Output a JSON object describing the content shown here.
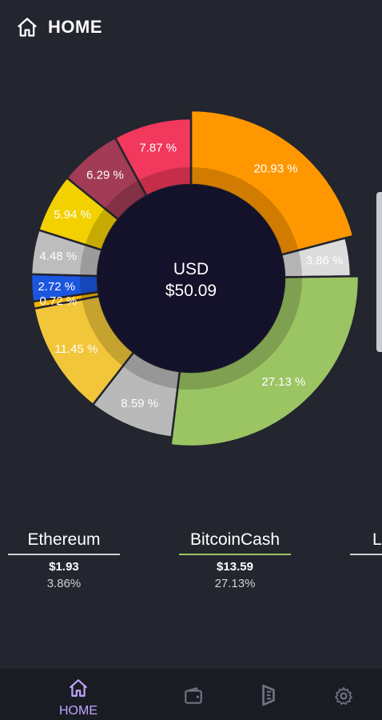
{
  "header": {
    "title": "HOME",
    "icon": "home-icon"
  },
  "chart_data": {
    "type": "pie",
    "center_label": "USD",
    "center_value": "$50.09",
    "slices": [
      {
        "label": "20.93 %",
        "value": 20.93,
        "color": "#ff9800"
      },
      {
        "label": "3.86 %",
        "value": 3.86,
        "color": "#dcdcdc"
      },
      {
        "label": "27.13 %",
        "value": 27.13,
        "color": "#9bc463"
      },
      {
        "label": "8.59 %",
        "value": 8.59,
        "color": "#b9b9b9"
      },
      {
        "label": "11.45 %",
        "value": 11.45,
        "color": "#f2c63a"
      },
      {
        "label": "0.72 %",
        "value": 0.72,
        "color": "#f5b400"
      },
      {
        "label": "2.72 %",
        "value": 2.72,
        "color": "#1b56e0"
      },
      {
        "label": "4.48 %",
        "value": 4.48,
        "color": "#bdbdbd"
      },
      {
        "label": "5.94 %",
        "value": 5.94,
        "color": "#f3d000"
      },
      {
        "label": "6.29 %",
        "value": 6.29,
        "color": "#a23b55"
      },
      {
        "label": "7.87 %",
        "value": 7.87,
        "color": "#f2385c"
      }
    ]
  },
  "coins": [
    {
      "name": "Ethereum",
      "value": "$1.93",
      "percent": "3.86%",
      "underline": "#cfd1d8"
    },
    {
      "name": "BitcoinCash",
      "value": "$13.59",
      "percent": "27.13%",
      "underline": "#9bc463"
    },
    {
      "name": "L",
      "value": "",
      "percent": "",
      "underline": "#cfd1d8"
    }
  ],
  "nav": {
    "home_label": "HOME",
    "active_color": "#bfa6ff",
    "icons": [
      "home-icon",
      "wallet-icon",
      "brand-logo-icon",
      "settings-icon"
    ]
  }
}
